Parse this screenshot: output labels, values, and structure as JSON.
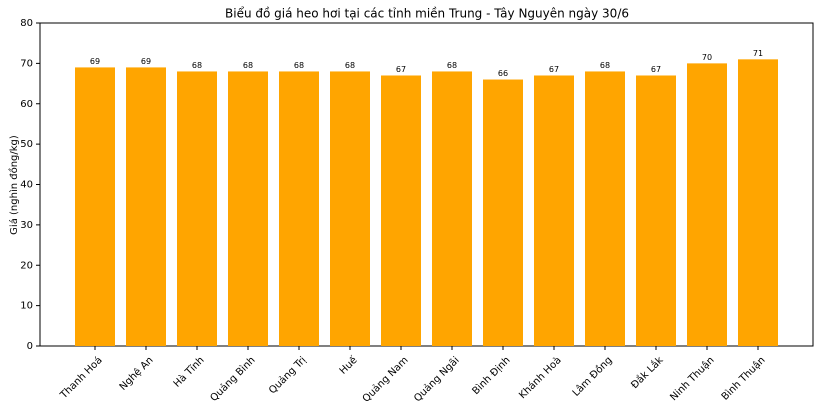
{
  "chart_data": {
    "type": "bar",
    "title": "Biểu đồ giá heo hơi tại các tỉnh miền Trung - Tây Nguyên ngày 30/6",
    "y_label": "Giá (nghìn đồng/kg)",
    "categories": [
      "Thanh Hoá",
      "Nghệ An",
      "Hà Tĩnh",
      "Quảng Bình",
      "Quảng Trị",
      "Huế",
      "Quảng Nam",
      "Quảng Ngãi",
      "Bình Định",
      "Khánh Hoà",
      "Lâm Đồng",
      "Đắk Lắk",
      "Ninh Thuận",
      "Bình Thuận"
    ],
    "values": [
      69,
      69,
      68,
      68,
      68,
      68,
      67,
      68,
      66,
      67,
      68,
      67,
      70,
      71
    ],
    "color": "#ffa500",
    "ylim": [
      0,
      80
    ],
    "yticks": [
      0,
      10,
      20,
      30,
      40,
      50,
      60,
      70,
      80
    ],
    "grid": false
  }
}
